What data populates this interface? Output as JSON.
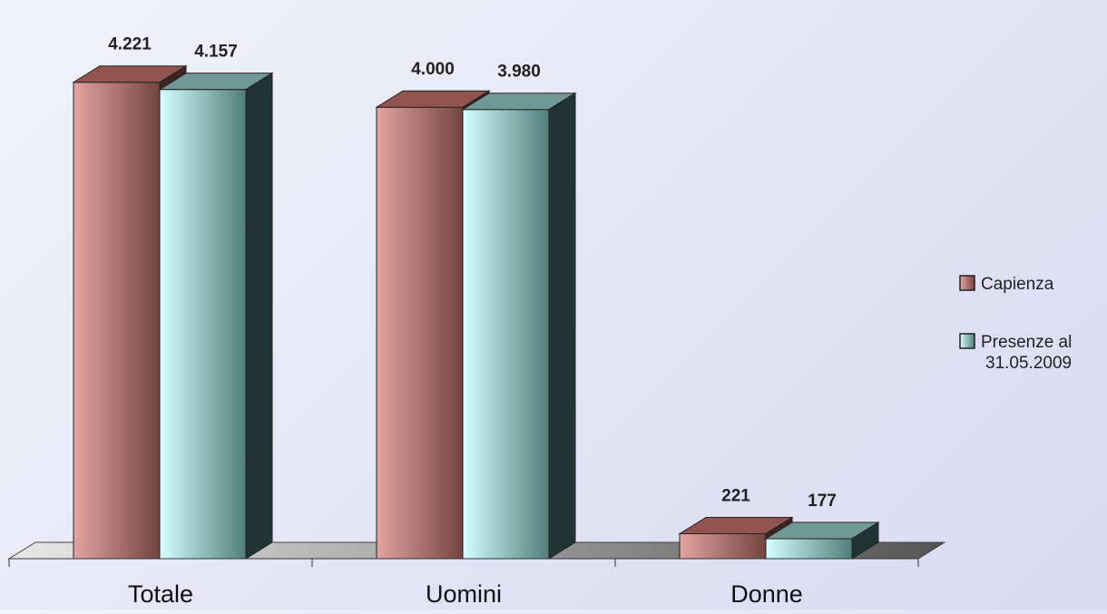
{
  "chart_data": {
    "type": "bar",
    "categories": [
      "Totale",
      "Uomini",
      "Donne"
    ],
    "series": [
      {
        "name": "Capienza",
        "values": [
          4221,
          4000,
          221
        ],
        "labels": [
          "4.221",
          "4.000",
          "221"
        ]
      },
      {
        "name": "Presenze al 31.05.2009",
        "values": [
          4157,
          3980,
          177
        ],
        "labels": [
          "4.157",
          "3.980",
          "177"
        ]
      }
    ],
    "legend_position": "right",
    "grid": false,
    "ylim": [
      0,
      4500
    ],
    "three_d": true
  },
  "legend": {
    "items": [
      {
        "lines": [
          "Capienza"
        ]
      },
      {
        "lines": [
          "Presenze al",
          "31.05.2009"
        ]
      }
    ]
  },
  "colors": {
    "capienza_front_light": "#e3a4a0",
    "capienza_front_dark": "#74443f",
    "capienza_top": "#92544e",
    "capienza_side": "#3e2320",
    "presenze_front_light": "#d4ffff",
    "presenze_front_dark": "#517d7a",
    "presenze_top": "#6f9896",
    "presenze_side": "#1f3433",
    "floor_light": "#e8e8e8",
    "floor_dark": "#555555"
  }
}
